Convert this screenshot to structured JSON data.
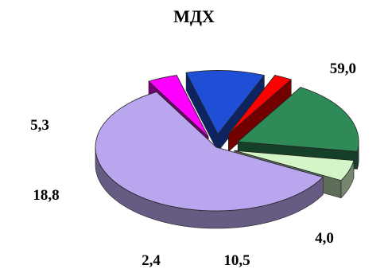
{
  "chart_data": {
    "type": "pie",
    "title": "МДХ",
    "slices": [
      {
        "label": "59,0",
        "value": 59.0,
        "color": "#b9a6ee",
        "exploded": false
      },
      {
        "label": "4,0",
        "value": 4.0,
        "color": "#ff00ff",
        "exploded": true
      },
      {
        "label": "10,5",
        "value": 10.5,
        "color": "#1f4fd6",
        "exploded": true
      },
      {
        "label": "2,4",
        "value": 2.4,
        "color": "#ff0000",
        "exploded": true
      },
      {
        "label": "18,8",
        "value": 18.8,
        "color": "#2e8b57",
        "exploded": true
      },
      {
        "label": "5,3",
        "value": 5.3,
        "color": "#d4f5c8",
        "exploded": true
      }
    ],
    "legend": "none",
    "style": "3d-exploded"
  }
}
